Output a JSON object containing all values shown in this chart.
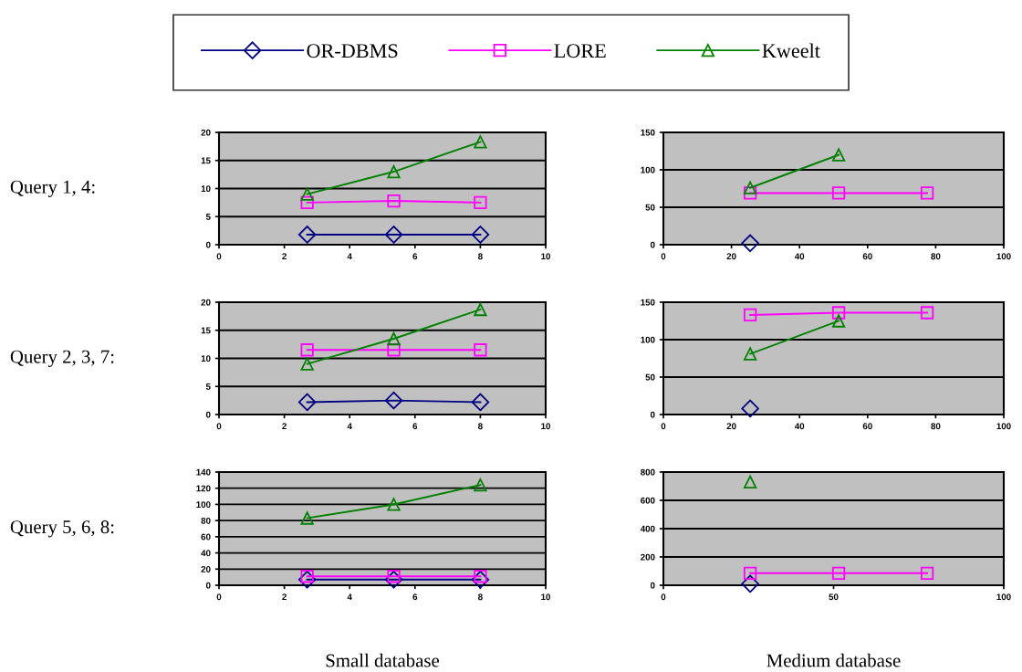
{
  "chart_data": [
    {
      "type": "line",
      "ylabel": "Query 1, 4:",
      "legend": "top",
      "grid": "y",
      "x": [
        2.7,
        5.35,
        8.0
      ],
      "xlim": [
        0,
        10
      ],
      "xticks": [
        0,
        2,
        4,
        6,
        8,
        10
      ],
      "ylim": [
        0,
        20
      ],
      "yticks": [
        0,
        5,
        10,
        15,
        20
      ],
      "series": [
        {
          "name": "OR-DBMS",
          "color": "#000080",
          "marker": "diamond",
          "values": [
            1.8,
            1.8,
            1.8
          ]
        },
        {
          "name": "LORE",
          "color": "#ff00ff",
          "marker": "square",
          "values": [
            7.5,
            7.8,
            7.5
          ]
        },
        {
          "name": "Kweelt",
          "color": "#008000",
          "marker": "triangle",
          "values": [
            9,
            13,
            18.3
          ]
        }
      ]
    },
    {
      "type": "line",
      "grid": "y",
      "x": [
        25.5,
        51.5,
        77.5
      ],
      "xlim": [
        0,
        100
      ],
      "xticks": [
        0,
        20,
        40,
        60,
        80,
        100
      ],
      "ylim": [
        0,
        150
      ],
      "yticks": [
        0,
        50,
        100,
        150
      ],
      "series": [
        {
          "color": "#000080",
          "marker": "diamond",
          "values": [
            2,
            null,
            null
          ]
        },
        {
          "color": "#ff00ff",
          "marker": "square",
          "values": [
            69,
            69,
            69
          ]
        },
        {
          "color": "#008000",
          "marker": "triangle",
          "values": [
            76,
            120,
            null
          ]
        }
      ]
    },
    {
      "type": "line",
      "ylabel": "Query 2, 3, 7:",
      "grid": "y",
      "x": [
        2.7,
        5.35,
        8.0
      ],
      "xlim": [
        0,
        10
      ],
      "xticks": [
        0,
        2,
        4,
        6,
        8,
        10
      ],
      "ylim": [
        0,
        20
      ],
      "yticks": [
        0,
        5,
        10,
        15,
        20
      ],
      "series": [
        {
          "color": "#000080",
          "marker": "diamond",
          "values": [
            2.2,
            2.5,
            2.2
          ]
        },
        {
          "color": "#ff00ff",
          "marker": "square",
          "values": [
            11.5,
            11.5,
            11.5
          ]
        },
        {
          "color": "#008000",
          "marker": "triangle",
          "values": [
            9,
            13.5,
            18.7
          ]
        }
      ]
    },
    {
      "type": "line",
      "grid": "y",
      "x": [
        25.5,
        51.5,
        77.5
      ],
      "xlim": [
        0,
        100
      ],
      "xticks": [
        0,
        20,
        40,
        60,
        80,
        100
      ],
      "ylim": [
        0,
        150
      ],
      "yticks": [
        0,
        50,
        100,
        150
      ],
      "series": [
        {
          "color": "#000080",
          "marker": "diamond",
          "values": [
            8,
            null,
            null
          ]
        },
        {
          "color": "#ff00ff",
          "marker": "square",
          "values": [
            133,
            136,
            136
          ]
        },
        {
          "color": "#008000",
          "marker": "triangle",
          "values": [
            81,
            125,
            null
          ]
        }
      ]
    },
    {
      "type": "line",
      "ylabel": "Query 5, 6, 8:",
      "xlabel": "Small database",
      "grid": "y",
      "x": [
        2.7,
        5.35,
        8.0
      ],
      "xlim": [
        0,
        10
      ],
      "xticks": [
        0,
        2,
        4,
        6,
        8,
        10
      ],
      "ylim": [
        0,
        140
      ],
      "yticks": [
        0,
        20,
        40,
        60,
        80,
        100,
        120,
        140
      ],
      "series": [
        {
          "color": "#000080",
          "marker": "diamond",
          "values": [
            7,
            7,
            7
          ]
        },
        {
          "color": "#ff00ff",
          "marker": "square",
          "values": [
            11,
            11,
            11
          ]
        },
        {
          "color": "#008000",
          "marker": "triangle",
          "values": [
            83,
            100,
            124
          ]
        }
      ]
    },
    {
      "type": "line",
      "xlabel": "Medium database",
      "grid": "y",
      "x": [
        25.5,
        51.5,
        77.5
      ],
      "xlim": [
        0,
        100
      ],
      "xticks": [
        0,
        50,
        100
      ],
      "ylim": [
        0,
        800
      ],
      "yticks": [
        0,
        200,
        400,
        600,
        800
      ],
      "series": [
        {
          "color": "#000080",
          "marker": "diamond",
          "values": [
            10,
            null,
            null
          ]
        },
        {
          "color": "#ff00ff",
          "marker": "square",
          "values": [
            85,
            85,
            85
          ]
        },
        {
          "color": "#008000",
          "marker": "triangle",
          "values": [
            730,
            null,
            null
          ]
        }
      ]
    }
  ]
}
